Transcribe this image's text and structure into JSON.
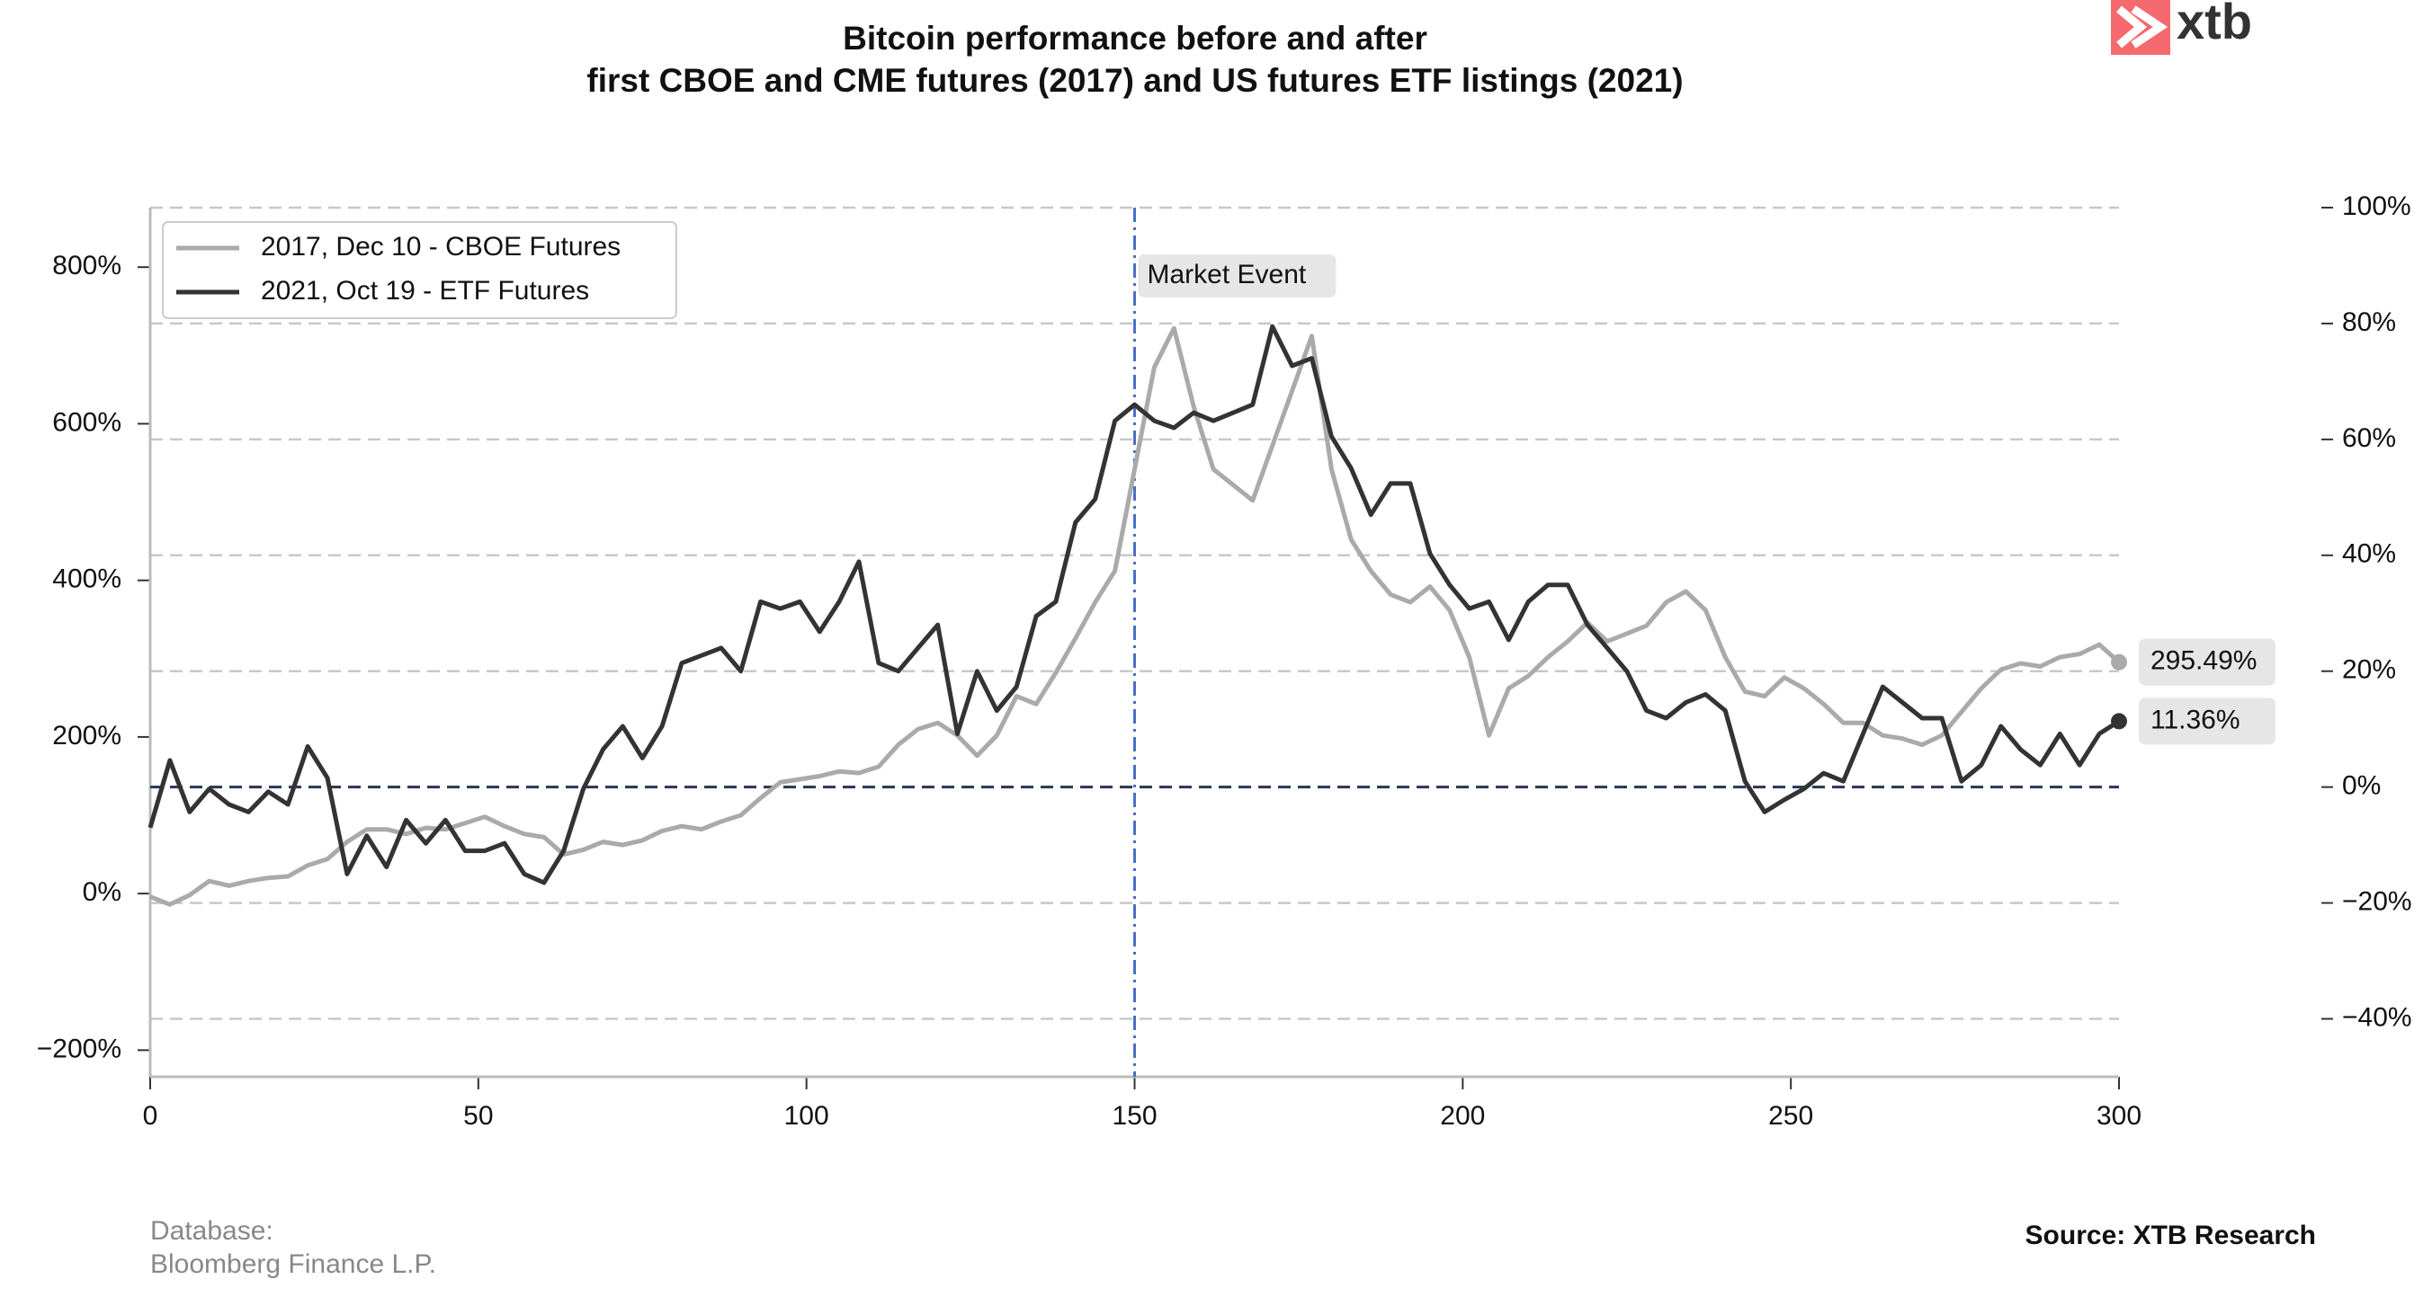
{
  "chart_data": {
    "type": "line",
    "title": [
      "Bitcoin performance before and after",
      "first CBOE and CME futures (2017) and US futures ETF listings (2021)"
    ],
    "x": [
      0,
      3,
      6,
      9,
      12,
      15,
      18,
      21,
      24,
      27,
      30,
      33,
      36,
      39,
      42,
      45,
      48,
      51,
      54,
      57,
      60,
      63,
      66,
      69,
      72,
      75,
      78,
      81,
      84,
      87,
      90,
      93,
      96,
      99,
      102,
      105,
      108,
      111,
      114,
      117,
      120,
      123,
      126,
      129,
      132,
      135,
      138,
      141,
      144,
      147,
      150,
      153,
      156,
      159,
      162,
      165,
      168,
      171,
      174,
      177,
      180,
      183,
      186,
      189,
      192,
      195,
      198,
      201,
      204,
      207,
      210,
      213,
      216,
      219,
      222,
      225,
      228,
      231,
      234,
      237,
      240,
      243,
      246,
      249,
      252,
      255,
      258,
      261,
      264,
      267,
      270,
      273,
      276,
      279,
      282,
      285,
      288,
      291,
      294,
      297,
      300
    ],
    "series": [
      {
        "name": "2017, Dec 10 - CBOE Futures",
        "color": "#aaaaaa",
        "axis": "y",
        "values": [
          -4,
          -14,
          -2,
          16,
          10,
          16,
          20,
          22,
          36,
          44,
          66,
          82,
          82,
          76,
          84,
          82,
          90,
          98,
          86,
          76,
          72,
          50,
          56,
          66,
          62,
          68,
          80,
          86,
          82,
          92,
          100,
          122,
          142,
          146,
          150,
          156,
          154,
          162,
          190,
          210,
          218,
          202,
          176,
          202,
          252,
          242,
          282,
          326,
          372,
          412,
          542,
          672,
          722,
          622,
          542,
          522,
          502,
          572,
          642,
          712,
          542,
          452,
          412,
          382,
          372,
          392,
          362,
          302,
          202,
          262,
          278,
          302,
          322,
          346,
          322,
          332,
          342,
          372,
          386,
          362,
          302,
          258,
          252,
          276,
          262,
          242,
          218,
          218,
          202,
          198,
          190,
          202,
          232,
          262,
          286,
          294,
          290,
          302,
          306,
          318,
          295.49
        ],
        "value_labels": [
          null,
          null,
          null,
          null,
          null,
          null,
          null,
          null,
          null,
          null,
          null,
          null,
          null,
          null,
          null,
          null,
          null,
          null,
          null,
          null,
          null,
          null,
          null,
          null,
          null,
          null,
          null,
          null,
          null,
          null,
          null,
          null,
          null,
          null,
          null,
          null,
          null,
          null,
          null,
          null,
          null,
          null,
          null,
          null,
          null,
          null,
          null,
          null,
          null,
          null,
          null,
          null,
          null,
          null,
          null,
          null,
          null,
          null,
          null,
          null,
          null,
          null,
          null,
          null,
          null,
          null,
          null,
          null,
          null,
          null,
          null,
          null,
          null,
          null,
          null,
          null,
          null,
          null,
          null,
          null,
          null,
          null,
          null,
          null,
          null,
          null,
          null,
          null,
          null,
          null,
          null,
          null,
          null,
          null,
          null,
          null,
          null,
          null,
          null,
          null,
          "295.49%"
        ]
      },
      {
        "name": "2021, Oct 19 - ETF Futures",
        "color": "#333333",
        "axis": "y2",
        "values": [
          -7,
          4.6,
          -4.3,
          -0.3,
          -3,
          -4.3,
          -0.8,
          -3,
          7,
          1.6,
          -15,
          -8.4,
          -13.8,
          -5.7,
          -9.7,
          -5.7,
          -11,
          -11,
          -9.7,
          -15,
          -16.5,
          -11,
          -0.3,
          6.5,
          10.5,
          5,
          10.5,
          21.4,
          22.7,
          24,
          20,
          32,
          30.8,
          32,
          26.8,
          32,
          38.9,
          21.4,
          20,
          24,
          28,
          9.2,
          20,
          13.2,
          17.3,
          29.5,
          32,
          45.7,
          49.7,
          63.2,
          66,
          63.2,
          62,
          64.6,
          63.2,
          64.6,
          66,
          79.5,
          72.7,
          74,
          60.5,
          55,
          47,
          52.4,
          52.4,
          40.3,
          34.9,
          30.8,
          32,
          25.4,
          32,
          34.9,
          34.9,
          28,
          24,
          20,
          13.2,
          11.9,
          14.6,
          16,
          13.2,
          1,
          -4.3,
          -2.2,
          -0.3,
          2.4,
          1,
          9.2,
          17.3,
          14.6,
          11.9,
          11.9,
          1,
          3.8,
          10.5,
          6.5,
          3.8,
          9.2,
          3.8,
          9.2,
          11.36
        ],
        "value_labels": [
          null,
          null,
          null,
          null,
          null,
          null,
          null,
          null,
          null,
          null,
          null,
          null,
          null,
          null,
          null,
          null,
          null,
          null,
          null,
          null,
          null,
          null,
          null,
          null,
          null,
          null,
          null,
          null,
          null,
          null,
          null,
          null,
          null,
          null,
          null,
          null,
          null,
          null,
          null,
          null,
          null,
          null,
          null,
          null,
          null,
          null,
          null,
          null,
          null,
          null,
          null,
          null,
          null,
          null,
          null,
          null,
          null,
          null,
          null,
          null,
          null,
          null,
          null,
          null,
          null,
          null,
          null,
          null,
          null,
          null,
          null,
          null,
          null,
          null,
          null,
          null,
          null,
          null,
          null,
          null,
          null,
          null,
          null,
          null,
          null,
          null,
          null,
          null,
          null,
          null,
          null,
          null,
          null,
          null,
          null,
          null,
          null,
          null,
          null,
          null,
          "11.36%"
        ]
      }
    ],
    "xlim": [
      0,
      300
    ],
    "xticks": [
      0,
      50,
      100,
      150,
      200,
      250,
      300
    ],
    "ylim": [
      -234,
      876
    ],
    "yticks": [
      {
        "value": -200,
        "label": "−200%"
      },
      {
        "value": 0,
        "label": "0%"
      },
      {
        "value": 200,
        "label": "200%"
      },
      {
        "value": 400,
        "label": "400%"
      },
      {
        "value": 600,
        "label": "600%"
      },
      {
        "value": 800,
        "label": "800%"
      }
    ],
    "y2lim": [
      -50,
      100
    ],
    "y2ticks": [
      {
        "value": -40,
        "label": "−40%"
      },
      {
        "value": -20,
        "label": "−20%"
      },
      {
        "value": 0,
        "label": "0%"
      },
      {
        "value": 20,
        "label": "20%"
      },
      {
        "value": 40,
        "label": "40%"
      },
      {
        "value": 60,
        "label": "60%"
      },
      {
        "value": 80,
        "label": "80%"
      },
      {
        "value": 100,
        "label": "100%"
      }
    ],
    "grid": true,
    "legend": "upper left",
    "event": {
      "x": 150,
      "label": "Market Event",
      "color": "#4a6fc4"
    },
    "y2_reference": 0,
    "footer": {
      "database": [
        "Database:",
        "Bloomberg Finance L.P."
      ],
      "source": "Source: XTB Research"
    },
    "logo": "xtb"
  }
}
